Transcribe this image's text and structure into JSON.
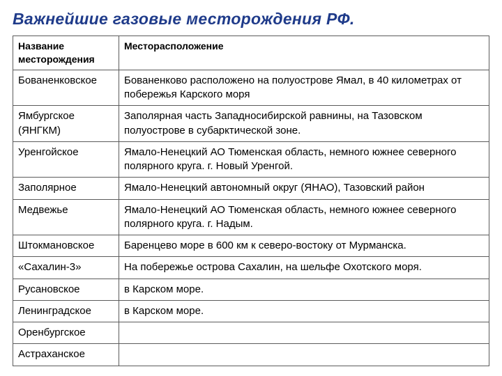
{
  "title": "Важнейшие газовые месторождения РФ.",
  "table": {
    "columns": [
      "Название месторождения",
      "Месторасположение"
    ],
    "rows": [
      [
        "Бованенковское",
        "Бованенково расположено на полуострове Ямал, в 40 километрах от побережья Карского моря"
      ],
      [
        "Ямбургское (ЯНГКМ)",
        "Заполярная часть Западносибирской равнины, на Тазовском полуострове в субарктической  зоне."
      ],
      [
        "Уренгойское",
        "Ямало-Ненецкий  АО Тюменская область, немного южнее северного полярного круга. г. Новый Уренгой."
      ],
      [
        "Заполярное",
        "Ямало-Ненецкий  автономный округ (ЯНАО), Тазовский район"
      ],
      [
        "Медвежье",
        "Ямало-Ненецкий АО Тюменская область, немного южнее северного полярного круга. г. Надым."
      ],
      [
        "Штокмановское",
        "Баренцево море в 600 км к северо-востоку от Мурманска."
      ],
      [
        "«Сахалин-3»",
        "На побережье острова Сахалин, на шельфе Охотского моря."
      ],
      [
        "Русановское",
        "в Карском море."
      ],
      [
        "Ленинградское",
        "в Карском море."
      ],
      [
        "Оренбургское",
        ""
      ],
      [
        "Астраханское",
        ""
      ]
    ]
  },
  "colors": {
    "title": "#1f3b8a",
    "border": "#5b5b5b",
    "background": "#ffffff",
    "text": "#000000"
  },
  "font_sizes": {
    "title": 23,
    "header": 14,
    "body": 15
  }
}
